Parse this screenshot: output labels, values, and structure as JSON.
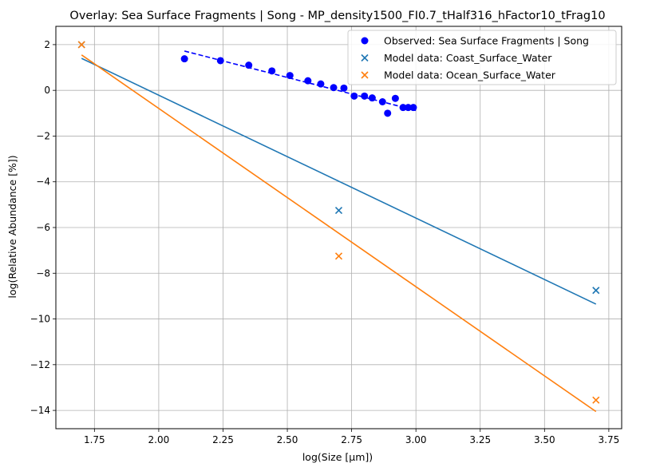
{
  "chart_data": {
    "type": "scatter",
    "title": "Overlay: Sea Surface Fragments | Song - MP_density1500_FI0.7_tHalf316_hFactor10_tFrag10",
    "xlabel": "log(Size [μm])",
    "ylabel": "log(Relative Abundance [%])",
    "xlim": [
      1.6,
      3.8
    ],
    "ylim": [
      -14.8,
      2.8
    ],
    "xticks": [
      1.75,
      2.0,
      2.25,
      2.5,
      2.75,
      3.0,
      3.25,
      3.5,
      3.75
    ],
    "xtick_labels": [
      "1.75",
      "2.00",
      "2.25",
      "2.50",
      "2.75",
      "3.00",
      "3.25",
      "3.50",
      "3.75"
    ],
    "yticks": [
      2,
      0,
      -2,
      -4,
      -6,
      -8,
      -10,
      -12,
      -14
    ],
    "ytick_labels": [
      "2",
      "0",
      "−2",
      "−4",
      "−6",
      "−8",
      "−10",
      "−12",
      "−14"
    ],
    "grid": true,
    "legend_position": "top-right",
    "series": [
      {
        "name": "Observed: Sea Surface Fragments | Song",
        "marker": "circle",
        "color": "#0000ff",
        "points": [
          {
            "x": 2.1,
            "y": 1.38
          },
          {
            "x": 2.24,
            "y": 1.3
          },
          {
            "x": 2.35,
            "y": 1.1
          },
          {
            "x": 2.44,
            "y": 0.85
          },
          {
            "x": 2.51,
            "y": 0.65
          },
          {
            "x": 2.58,
            "y": 0.42
          },
          {
            "x": 2.63,
            "y": 0.28
          },
          {
            "x": 2.68,
            "y": 0.12
          },
          {
            "x": 2.72,
            "y": 0.1
          },
          {
            "x": 2.76,
            "y": -0.25
          },
          {
            "x": 2.8,
            "y": -0.25
          },
          {
            "x": 2.83,
            "y": -0.33
          },
          {
            "x": 2.87,
            "y": -0.5
          },
          {
            "x": 2.89,
            "y": -1.0
          },
          {
            "x": 2.92,
            "y": -0.35
          },
          {
            "x": 2.95,
            "y": -0.75
          },
          {
            "x": 2.97,
            "y": -0.75
          },
          {
            "x": 2.99,
            "y": -0.75
          }
        ],
        "fit": {
          "x1": 2.1,
          "y1": 1.72,
          "x2": 3.0,
          "y2": -0.88,
          "style": "dashed"
        }
      },
      {
        "name": "Model data: Coast_Surface_Water",
        "marker": "x",
        "color": "#1f77b4",
        "points": [
          {
            "x": 1.7,
            "y": 2.0
          },
          {
            "x": 2.7,
            "y": -5.25
          },
          {
            "x": 3.7,
            "y": -8.75
          }
        ],
        "fit": {
          "x1": 1.7,
          "y1": 1.4,
          "x2": 3.7,
          "y2": -9.35,
          "style": "solid"
        }
      },
      {
        "name": "Model data: Ocean_Surface_Water",
        "marker": "x",
        "color": "#ff7f0e",
        "points": [
          {
            "x": 1.7,
            "y": 2.0
          },
          {
            "x": 2.7,
            "y": -7.25
          },
          {
            "x": 3.7,
            "y": -13.55
          }
        ],
        "fit": {
          "x1": 1.7,
          "y1": 1.55,
          "x2": 3.7,
          "y2": -14.05,
          "style": "solid"
        }
      }
    ]
  }
}
